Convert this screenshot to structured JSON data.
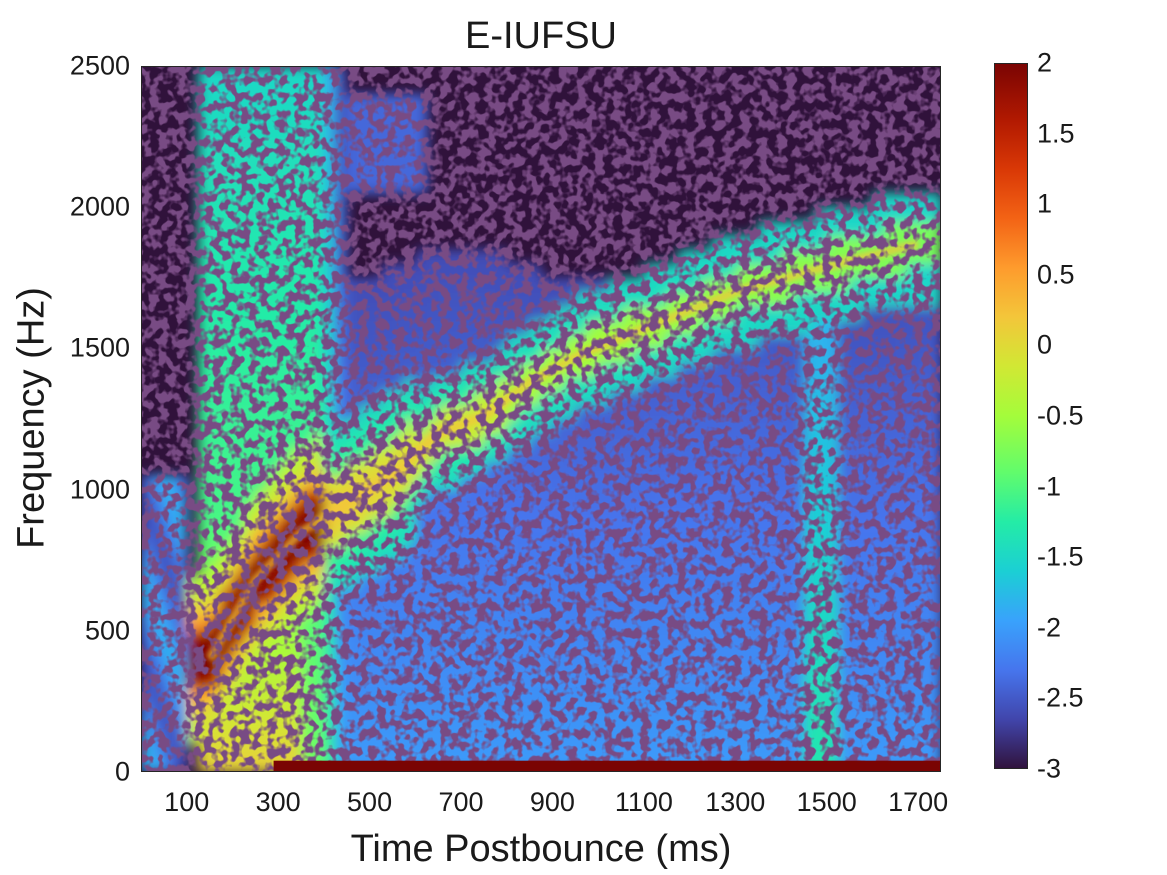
{
  "chart_data": {
    "type": "heatmap",
    "title": "E-IUFSU",
    "xlabel": "Time Postbounce (ms)",
    "ylabel": "Frequency (Hz)",
    "xlim": [
      0,
      1750
    ],
    "ylim": [
      0,
      2500
    ],
    "xticks": [
      "100",
      "300",
      "500",
      "700",
      "900",
      "1100",
      "1300",
      "1500",
      "1700"
    ],
    "yticks": [
      "0",
      "500",
      "1000",
      "1500",
      "2000",
      "2500"
    ],
    "colorbar": {
      "range": [
        -3,
        2
      ],
      "ticks": [
        "2",
        "1.5",
        "1",
        "0.5",
        "0",
        "-0.5",
        "-1",
        "-1.5",
        "-2",
        "-2.5",
        "-3"
      ],
      "colormap": "turbo"
    },
    "colors": {
      "background": "#30123b",
      "peak": "#7a0403"
    },
    "features": {
      "onset_ms": 120,
      "ridge_track": [
        {
          "t": 150,
          "f": 400
        },
        {
          "t": 250,
          "f": 680
        },
        {
          "t": 350,
          "f": 850
        },
        {
          "t": 450,
          "f": 950
        },
        {
          "t": 550,
          "f": 1050
        },
        {
          "t": 650,
          "f": 1200
        },
        {
          "t": 750,
          "f": 1260
        },
        {
          "t": 850,
          "f": 1380
        },
        {
          "t": 950,
          "f": 1470
        },
        {
          "t": 1100,
          "f": 1570
        },
        {
          "t": 1300,
          "f": 1700
        },
        {
          "t": 1500,
          "f": 1790
        },
        {
          "t": 1700,
          "f": 1870
        }
      ],
      "low_frequency_band_hz": [
        0,
        40
      ],
      "low_frequency_band_value": 2,
      "broadband_region": {
        "t": [
          120,
          400
        ],
        "f": [
          0,
          2500
        ],
        "value": -0.8
      }
    }
  }
}
